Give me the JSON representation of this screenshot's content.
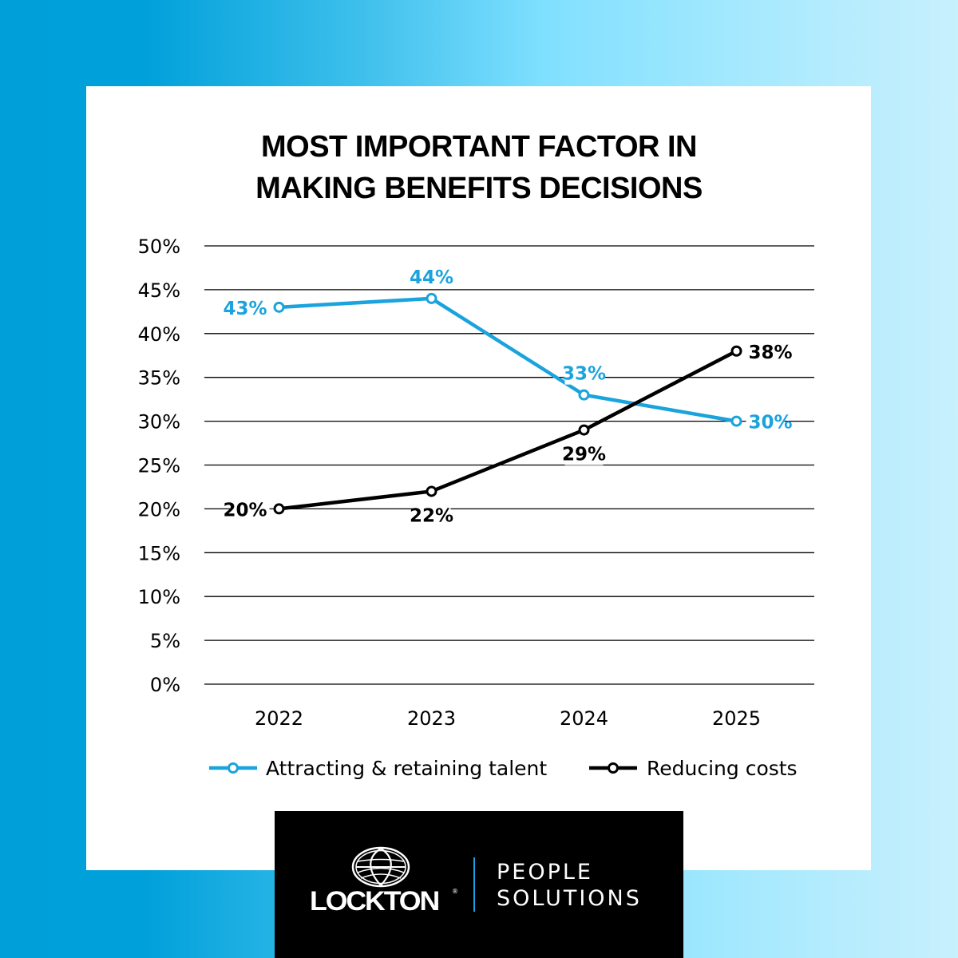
{
  "title_lines": [
    "MOST IMPORTANT FACTOR IN",
    "MAKING BENEFITS DECISIONS"
  ],
  "colors": {
    "talent": "#1aa3dc",
    "costs": "#000000",
    "grid": "#000000",
    "background_start": "#009fd9",
    "background_end": "#c8f0fd"
  },
  "chart_data": {
    "type": "line",
    "title": "MOST IMPORTANT FACTOR IN MAKING BENEFITS DECISIONS",
    "xlabel": "",
    "ylabel": "",
    "categories": [
      "2022",
      "2023",
      "2024",
      "2025"
    ],
    "ylim": [
      0,
      50
    ],
    "yticks": [
      0,
      5,
      10,
      15,
      20,
      25,
      30,
      35,
      40,
      45,
      50
    ],
    "ytick_labels": [
      "0%",
      "5%",
      "10%",
      "15%",
      "20%",
      "25%",
      "30%",
      "35%",
      "40%",
      "45%",
      "50%"
    ],
    "grid": true,
    "legend_position": "bottom",
    "series": [
      {
        "name": "Attracting & retaining talent",
        "color": "#1aa3dc",
        "values": [
          43,
          44,
          33,
          30
        ],
        "labels": [
          "43%",
          "44%",
          "33%",
          "30%"
        ],
        "label_positions": [
          "left",
          "above",
          "above",
          "right"
        ]
      },
      {
        "name": "Reducing costs",
        "color": "#000000",
        "values": [
          20,
          22,
          29,
          38
        ],
        "labels": [
          "20%",
          "22%",
          "29%",
          "38%"
        ],
        "label_positions": [
          "left",
          "below",
          "below",
          "right"
        ]
      }
    ]
  },
  "brand": {
    "logo_icon": "globe-icon",
    "company": "LOCKTON",
    "registered_mark": "®",
    "division_line1": "PEOPLE",
    "division_line2": "SOLUTIONS"
  }
}
